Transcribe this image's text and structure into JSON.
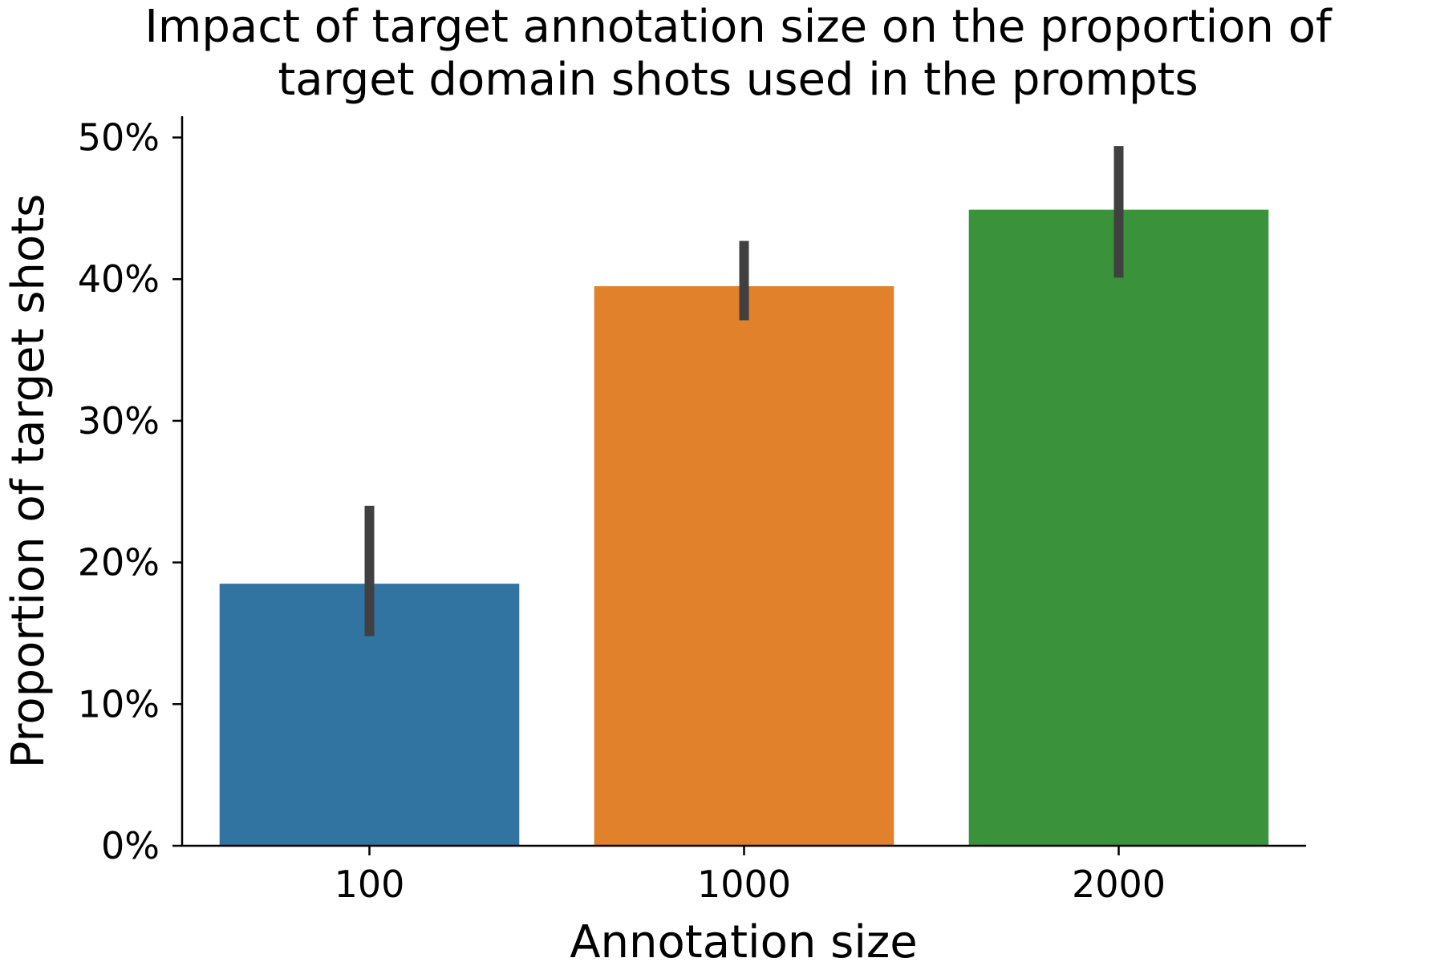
{
  "chart_data": {
    "type": "bar",
    "title_lines": [
      "Impact of target annotation size on the proportion of",
      "target domain shots used in the prompts"
    ],
    "xlabel": "Annotation size",
    "ylabel": "Proportion of target shots",
    "categories": [
      "100",
      "1000",
      "2000"
    ],
    "values": [
      0.185,
      0.395,
      0.449
    ],
    "error_low": [
      0.148,
      0.371,
      0.401
    ],
    "error_high": [
      0.24,
      0.427,
      0.494
    ],
    "colors": [
      "#3274a1",
      "#e1812c",
      "#3a923a"
    ],
    "error_color": "#404040",
    "ylim": [
      0,
      0.515
    ],
    "yticks": [
      0,
      0.1,
      0.2,
      0.3,
      0.4,
      0.5
    ],
    "ytick_labels": [
      "0%",
      "10%",
      "20%",
      "30%",
      "40%",
      "50%"
    ],
    "grid": false,
    "legend": "none"
  }
}
